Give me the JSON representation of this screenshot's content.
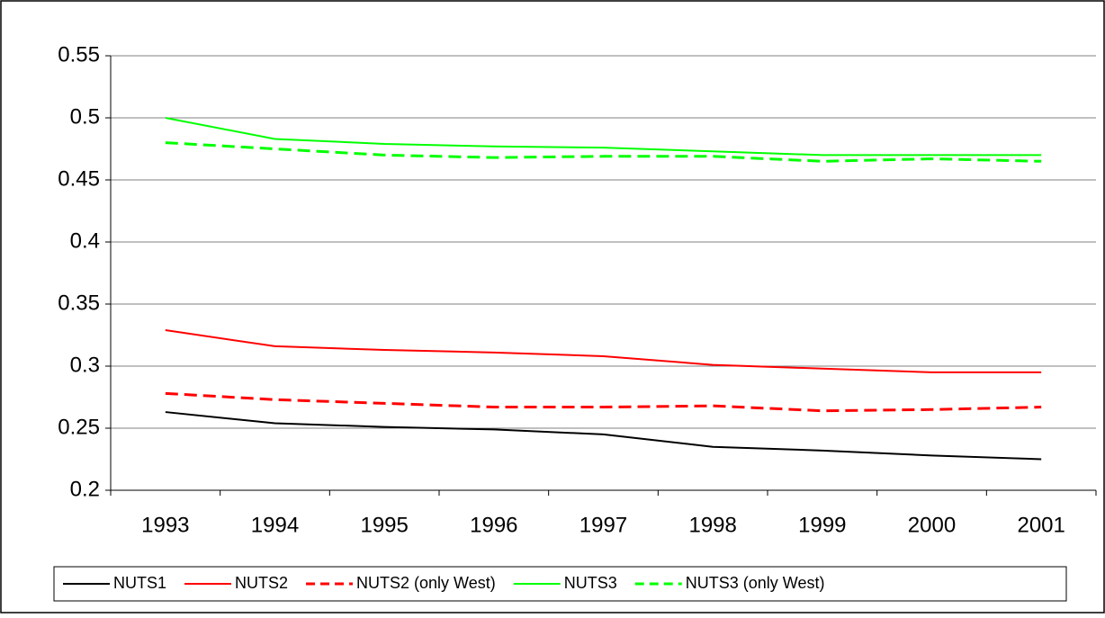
{
  "chart_data": {
    "type": "line",
    "categories": [
      "1993",
      "1994",
      "1995",
      "1996",
      "1997",
      "1998",
      "1999",
      "2000",
      "2001"
    ],
    "series": [
      {
        "name": "NUTS1",
        "color": "#000000",
        "dashed": false,
        "values": [
          0.263,
          0.254,
          0.251,
          0.249,
          0.245,
          0.235,
          0.232,
          0.228,
          0.225
        ]
      },
      {
        "name": "NUTS2",
        "color": "#ff0000",
        "dashed": false,
        "values": [
          0.329,
          0.316,
          0.313,
          0.311,
          0.308,
          0.301,
          0.298,
          0.295,
          0.295
        ]
      },
      {
        "name": "NUTS2 (only West)",
        "color": "#ff0000",
        "dashed": true,
        "values": [
          0.278,
          0.273,
          0.27,
          0.267,
          0.267,
          0.268,
          0.264,
          0.265,
          0.267
        ]
      },
      {
        "name": "NUTS3",
        "color": "#00ff00",
        "dashed": false,
        "values": [
          0.5,
          0.483,
          0.479,
          0.477,
          0.476,
          0.473,
          0.47,
          0.47,
          0.47
        ]
      },
      {
        "name": "NUTS3 (only West)",
        "color": "#00ff00",
        "dashed": true,
        "values": [
          0.48,
          0.475,
          0.47,
          0.468,
          0.469,
          0.469,
          0.465,
          0.467,
          0.465
        ]
      }
    ],
    "ylim": [
      0.2,
      0.55
    ],
    "yticks": [
      0.2,
      0.25,
      0.3,
      0.35,
      0.4,
      0.45,
      0.5,
      0.55
    ],
    "grid": true,
    "legend": "bottom"
  }
}
